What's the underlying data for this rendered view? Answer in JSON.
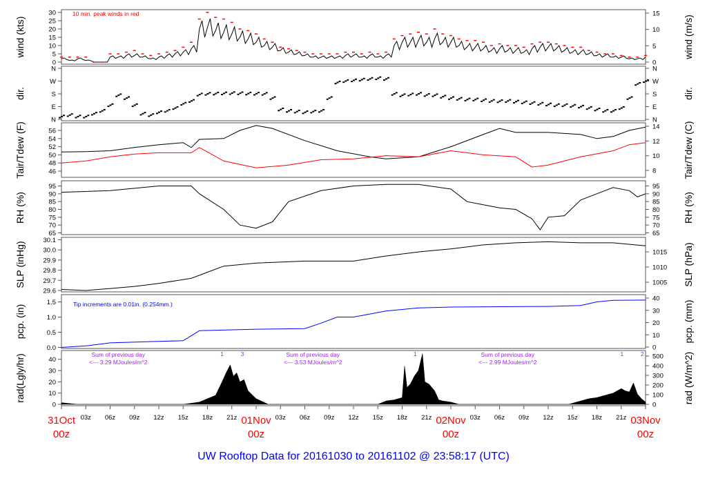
{
  "title": "UW Rooftop Data for 20161030  to  20161102 @ 23:58:17  (UTC)",
  "colors": {
    "title": "#0000ff",
    "day_labels": "#ff0000",
    "peak": "#ff0000",
    "dew": "#ff0000",
    "pcp": "#0000ff",
    "annot": "#a020f0",
    "line": "#000000"
  },
  "chart_data": [
    {
      "type": "line",
      "panel": "wind",
      "ylabel": "wind (kts)",
      "ylabel_right": "wind (m/s)",
      "ylim": [
        0,
        30
      ],
      "yticks": [
        0,
        5,
        10,
        15,
        20,
        25,
        30
      ],
      "yticks_right": [
        0,
        5,
        10,
        15
      ],
      "annotation": "10 min. peak winds in red",
      "x_hours_step": 1,
      "series": [
        {
          "name": "wind",
          "values": [
            2,
            1,
            2,
            1,
            0,
            0,
            3,
            3,
            4,
            4,
            3,
            2,
            3,
            4,
            5,
            6,
            8,
            20,
            21,
            19,
            18,
            17,
            15,
            14,
            12,
            10,
            9,
            7,
            6,
            5,
            4,
            3,
            3,
            3,
            3,
            4,
            4,
            3,
            4,
            3,
            4,
            10,
            12,
            12,
            13,
            12,
            14,
            12,
            12,
            10,
            9,
            9,
            8,
            7,
            8,
            7,
            7,
            6,
            8,
            9,
            9,
            8,
            7,
            6,
            6,
            5,
            4,
            4,
            3,
            3,
            2,
            2,
            3
          ]
        },
        {
          "name": "peak",
          "values": [
            3,
            3,
            3,
            3,
            0,
            0,
            5,
            5,
            6,
            7,
            5,
            4,
            5,
            6,
            7,
            9,
            12,
            26,
            30,
            27,
            26,
            24,
            20,
            19,
            17,
            14,
            12,
            9,
            8,
            7,
            6,
            5,
            5,
            5,
            5,
            6,
            6,
            5,
            6,
            5,
            6,
            14,
            16,
            17,
            18,
            17,
            20,
            17,
            16,
            14,
            13,
            13,
            12,
            10,
            11,
            10,
            10,
            9,
            11,
            12,
            12,
            11,
            10,
            9,
            9,
            7,
            6,
            5,
            5,
            4,
            3,
            3,
            4
          ]
        }
      ]
    },
    {
      "type": "scatter",
      "panel": "dir",
      "ylabel": "dir.",
      "ylabel_right": "dir.",
      "ylim": [
        0,
        360
      ],
      "yticks": [
        {
          "v": 0,
          "l": "N"
        },
        {
          "v": 90,
          "l": "E"
        },
        {
          "v": 180,
          "l": "S"
        },
        {
          "v": 270,
          "l": "W"
        },
        {
          "v": 360,
          "l": "N"
        }
      ],
      "x_hours_step": 1,
      "values": [
        20,
        30,
        20,
        20,
        40,
        60,
        100,
        170,
        150,
        100,
        40,
        30,
        50,
        60,
        80,
        110,
        130,
        175,
        180,
        182,
        183,
        185,
        184,
        182,
        181,
        180,
        150,
        70,
        60,
        55,
        50,
        55,
        60,
        150,
        260,
        270,
        275,
        280,
        285,
        290,
        285,
        180,
        170,
        175,
        180,
        172,
        170,
        160,
        150,
        145,
        140,
        140,
        135,
        130,
        128,
        130,
        125,
        120,
        115,
        110,
        105,
        100,
        100,
        95,
        90,
        80,
        70,
        60,
        60,
        80,
        150,
        250,
        270
      ]
    },
    {
      "type": "line",
      "panel": "temp",
      "ylabel": "Tair/Tdew (F)",
      "ylabel_right": "Tair/Tdew (C)",
      "ylim": [
        45,
        57
      ],
      "yticks": [
        46,
        48,
        50,
        52,
        54,
        56
      ],
      "yticks_right": [
        8,
        10,
        12,
        14
      ],
      "series": [
        {
          "name": "Tair",
          "points": [
            [
              0,
              50.7
            ],
            [
              3,
              50.8
            ],
            [
              6,
              51
            ],
            [
              9,
              51.8
            ],
            [
              12,
              52.5
            ],
            [
              15,
              53
            ],
            [
              16,
              51.8
            ],
            [
              17,
              53.8
            ],
            [
              20,
              54
            ],
            [
              22,
              56
            ],
            [
              24,
              57.2
            ],
            [
              26,
              56.5
            ],
            [
              30,
              53.5
            ],
            [
              34,
              51
            ],
            [
              38,
              49.5
            ],
            [
              40,
              49
            ],
            [
              44,
              49.5
            ],
            [
              48,
              52
            ],
            [
              52,
              55
            ],
            [
              54,
              56.5
            ],
            [
              56,
              55.5
            ],
            [
              60,
              55.5
            ],
            [
              64,
              55
            ],
            [
              66,
              54
            ],
            [
              68,
              54.5
            ],
            [
              70,
              56
            ],
            [
              72,
              56.8
            ]
          ]
        },
        {
          "name": "Tdew",
          "points": [
            [
              0,
              48
            ],
            [
              3,
              48.5
            ],
            [
              6,
              49.5
            ],
            [
              9,
              50.2
            ],
            [
              12,
              50.5
            ],
            [
              15,
              50.5
            ],
            [
              16,
              50.5
            ],
            [
              17,
              51.8
            ],
            [
              20,
              48.5
            ],
            [
              24,
              46.8
            ],
            [
              28,
              47.5
            ],
            [
              32,
              48.8
            ],
            [
              36,
              49
            ],
            [
              40,
              49.8
            ],
            [
              44,
              49.5
            ],
            [
              48,
              51
            ],
            [
              52,
              50
            ],
            [
              56,
              49.5
            ],
            [
              58,
              47
            ],
            [
              60,
              47.5
            ],
            [
              64,
              49.5
            ],
            [
              68,
              51
            ],
            [
              70,
              52.5
            ],
            [
              72,
              53
            ]
          ]
        }
      ]
    },
    {
      "type": "line",
      "panel": "rh",
      "ylabel": "RH (%)",
      "ylabel_right": "RH (%)",
      "ylim": [
        63,
        97
      ],
      "yticks": [
        65,
        70,
        75,
        80,
        85,
        90,
        95
      ],
      "yticks_right": [
        65,
        70,
        75,
        80,
        85,
        90,
        95
      ],
      "points": [
        [
          0,
          91
        ],
        [
          6,
          92
        ],
        [
          12,
          95
        ],
        [
          16,
          95
        ],
        [
          17,
          90
        ],
        [
          20,
          80
        ],
        [
          22,
          70
        ],
        [
          24,
          68
        ],
        [
          26,
          72
        ],
        [
          28,
          85
        ],
        [
          32,
          92
        ],
        [
          36,
          95
        ],
        [
          40,
          96
        ],
        [
          44,
          96
        ],
        [
          48,
          93
        ],
        [
          50,
          85
        ],
        [
          52,
          83
        ],
        [
          54,
          81
        ],
        [
          56,
          80
        ],
        [
          58,
          74
        ],
        [
          59,
          67
        ],
        [
          60,
          75
        ],
        [
          62,
          76
        ],
        [
          64,
          86
        ],
        [
          66,
          90
        ],
        [
          68,
          94
        ],
        [
          70,
          92
        ],
        [
          71,
          88
        ],
        [
          72,
          90
        ]
      ]
    },
    {
      "type": "line",
      "panel": "slp",
      "ylabel": "SLP (inHg)",
      "ylabel_right": "SLP (hPa)",
      "ylim": [
        29.58,
        30.12
      ],
      "yticks": [
        "29.6",
        "29.7",
        "29.8",
        "29.9",
        "30.0",
        "30.1"
      ],
      "yticks_right": [
        1005,
        1010,
        1015
      ],
      "points": [
        [
          0,
          29.61
        ],
        [
          3,
          29.6
        ],
        [
          6,
          29.62
        ],
        [
          9,
          29.64
        ],
        [
          12,
          29.67
        ],
        [
          16,
          29.72
        ],
        [
          18,
          29.78
        ],
        [
          20,
          29.84
        ],
        [
          24,
          29.87
        ],
        [
          30,
          29.89
        ],
        [
          36,
          29.89
        ],
        [
          40,
          29.94
        ],
        [
          44,
          29.98
        ],
        [
          48,
          30.01
        ],
        [
          52,
          30.05
        ],
        [
          56,
          30.07
        ],
        [
          60,
          30.08
        ],
        [
          64,
          30.07
        ],
        [
          68,
          30.07
        ],
        [
          72,
          30.04
        ]
      ]
    },
    {
      "type": "line",
      "panel": "pcp",
      "ylabel": "pcp. (in)",
      "ylabel_right": "pcp. (mm)",
      "ylim": [
        0,
        1.65
      ],
      "yticks": [
        "0.0",
        "0.5",
        "1.0",
        "1.5"
      ],
      "yticks_right": [
        0,
        10,
        20,
        30,
        40
      ],
      "annotation": "Tip increments are 0.01in. (0.254mm.)",
      "points": [
        [
          0,
          0
        ],
        [
          3,
          0.05
        ],
        [
          6,
          0.15
        ],
        [
          12,
          0.2
        ],
        [
          15,
          0.22
        ],
        [
          17,
          0.55
        ],
        [
          24,
          0.6
        ],
        [
          30,
          0.62
        ],
        [
          32,
          0.8
        ],
        [
          34,
          1.0
        ],
        [
          36,
          1.0
        ],
        [
          38,
          1.1
        ],
        [
          40,
          1.2
        ],
        [
          44,
          1.3
        ],
        [
          48,
          1.33
        ],
        [
          60,
          1.35
        ],
        [
          64,
          1.38
        ],
        [
          66,
          1.5
        ],
        [
          68,
          1.55
        ],
        [
          72,
          1.56
        ]
      ]
    },
    {
      "type": "area",
      "panel": "rad",
      "ylabel": "rad(Lgly/hr)",
      "ylabel_right": "rad (W/m^2)",
      "ylim": [
        0,
        45
      ],
      "yticks": [
        0,
        10,
        20,
        30,
        40
      ],
      "yticks_right": [
        0,
        100,
        200,
        300,
        400,
        500
      ],
      "points": [
        [
          0,
          1.5
        ],
        [
          2,
          0
        ],
        [
          15,
          0
        ],
        [
          16,
          1
        ],
        [
          17,
          2
        ],
        [
          18,
          5
        ],
        [
          19,
          8
        ],
        [
          19.8,
          20
        ],
        [
          20.3,
          28
        ],
        [
          20.8,
          35
        ],
        [
          21.2,
          25
        ],
        [
          21.6,
          28
        ],
        [
          22,
          20
        ],
        [
          22.5,
          22
        ],
        [
          23,
          12
        ],
        [
          24,
          5
        ],
        [
          25.5,
          0
        ],
        [
          39,
          0
        ],
        [
          40,
          3
        ],
        [
          41,
          4
        ],
        [
          42,
          6
        ],
        [
          42.3,
          34
        ],
        [
          42.6,
          15
        ],
        [
          43,
          18
        ],
        [
          43.5,
          25
        ],
        [
          44,
          30
        ],
        [
          44.5,
          45
        ],
        [
          44.8,
          20
        ],
        [
          45.3,
          18
        ],
        [
          46,
          12
        ],
        [
          46.5,
          4
        ],
        [
          47,
          3
        ],
        [
          48,
          2
        ],
        [
          49,
          0
        ],
        [
          62.5,
          0
        ],
        [
          64,
          3
        ],
        [
          65,
          5
        ],
        [
          66,
          6
        ],
        [
          67,
          8
        ],
        [
          68,
          10
        ],
        [
          69,
          14
        ],
        [
          69.5,
          12
        ],
        [
          70,
          11
        ],
        [
          70.5,
          19
        ],
        [
          71,
          9
        ],
        [
          71.5,
          5
        ],
        [
          72,
          2
        ]
      ],
      "daily_sums": [
        {
          "line1": "Sum of previous day",
          "line2": "<--- 3.29 MJoules/m^2",
          "hour": 7
        },
        {
          "line1": "Sum of previous day",
          "line2": "<--- 3.53 MJoules/m^2",
          "hour": 31
        },
        {
          "line1": "Sum of previous day",
          "line2": "<--- 2.99 MJoules/m^2",
          "hour": 55
        }
      ],
      "markers": [
        {
          "label": "1",
          "hour": 19.8
        },
        {
          "label": "3",
          "hour": 22.3
        },
        {
          "label": "1",
          "hour": 43.6
        },
        {
          "label": "1",
          "hour": 69.1
        },
        {
          "label": "2",
          "hour": 71.6
        }
      ]
    }
  ],
  "xaxis": {
    "hour_ticks": [
      "03z",
      "06z",
      "09z",
      "12z",
      "15z",
      "18z",
      "21z"
    ],
    "days": [
      {
        "day": "31Oct",
        "time": "00z"
      },
      {
        "day": "01Nov",
        "time": "00z"
      },
      {
        "day": "02Nov",
        "time": "00z"
      },
      {
        "day": "03Nov",
        "time": "00z"
      }
    ]
  }
}
